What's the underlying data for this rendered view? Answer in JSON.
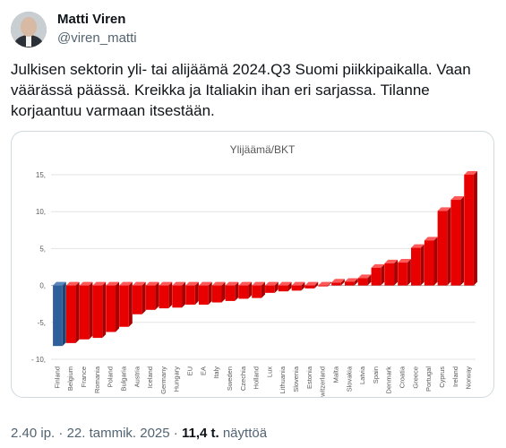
{
  "author": {
    "name": "Matti Viren",
    "handle": "@viren_matti",
    "avatar_icon": "profile-photo"
  },
  "tweet": {
    "text": "Julkisen sektorin yli- tai alijäämä 2024.Q3 Suomi piikkipaikalla. Vaan väärässä päässä. Kreikka ja Italiakin ihan eri sarjassa. Tilanne korjaantuu varmaan itsestään."
  },
  "footer": {
    "time": "2.40 ip.",
    "sep1": "·",
    "date": "22. tammik. 2025",
    "sep2": "·",
    "views": "11,4 t.",
    "views_label": "näyttöä"
  },
  "chart_data": {
    "type": "bar",
    "title": "Ylijäämä/BKT",
    "ylim": [
      -10,
      15
    ],
    "yticks": [
      "15,",
      "10,",
      "5,",
      "0,",
      "-5,",
      "- 10,"
    ],
    "grid": true,
    "highlight_color": "#2e5f9b",
    "bar_color": "#e80000",
    "categories": [
      "Finland",
      "Belgium",
      "France",
      "Romania",
      "Poland",
      "Bulgaria",
      "Austria",
      "Iceland",
      "Germany",
      "Hungary",
      "EU",
      "EA",
      "Italy",
      "Sweden",
      "Czechia",
      "Holland",
      "Lux",
      "Lithuania",
      "Slovenia",
      "Estonia",
      "Switzerland",
      "Malta",
      "Slovakia",
      "Latvia",
      "Spain",
      "Denmark",
      "Croatia",
      "Greece",
      "Portugal",
      "Cyprus",
      "Ireland",
      "Norway"
    ],
    "values": [
      -8.2,
      -7.8,
      -7.3,
      -7.1,
      -6.3,
      -5.6,
      -3.9,
      -3.3,
      -3.1,
      -3.0,
      -2.6,
      -2.6,
      -2.3,
      -2.1,
      -1.8,
      -1.7,
      -1.0,
      -0.8,
      -0.7,
      -0.4,
      -0.1,
      0.4,
      0.5,
      1.0,
      2.4,
      3.0,
      3.1,
      5.1,
      6.1,
      10.1,
      11.6,
      15.0
    ],
    "highlight": [
      "Finland"
    ]
  }
}
